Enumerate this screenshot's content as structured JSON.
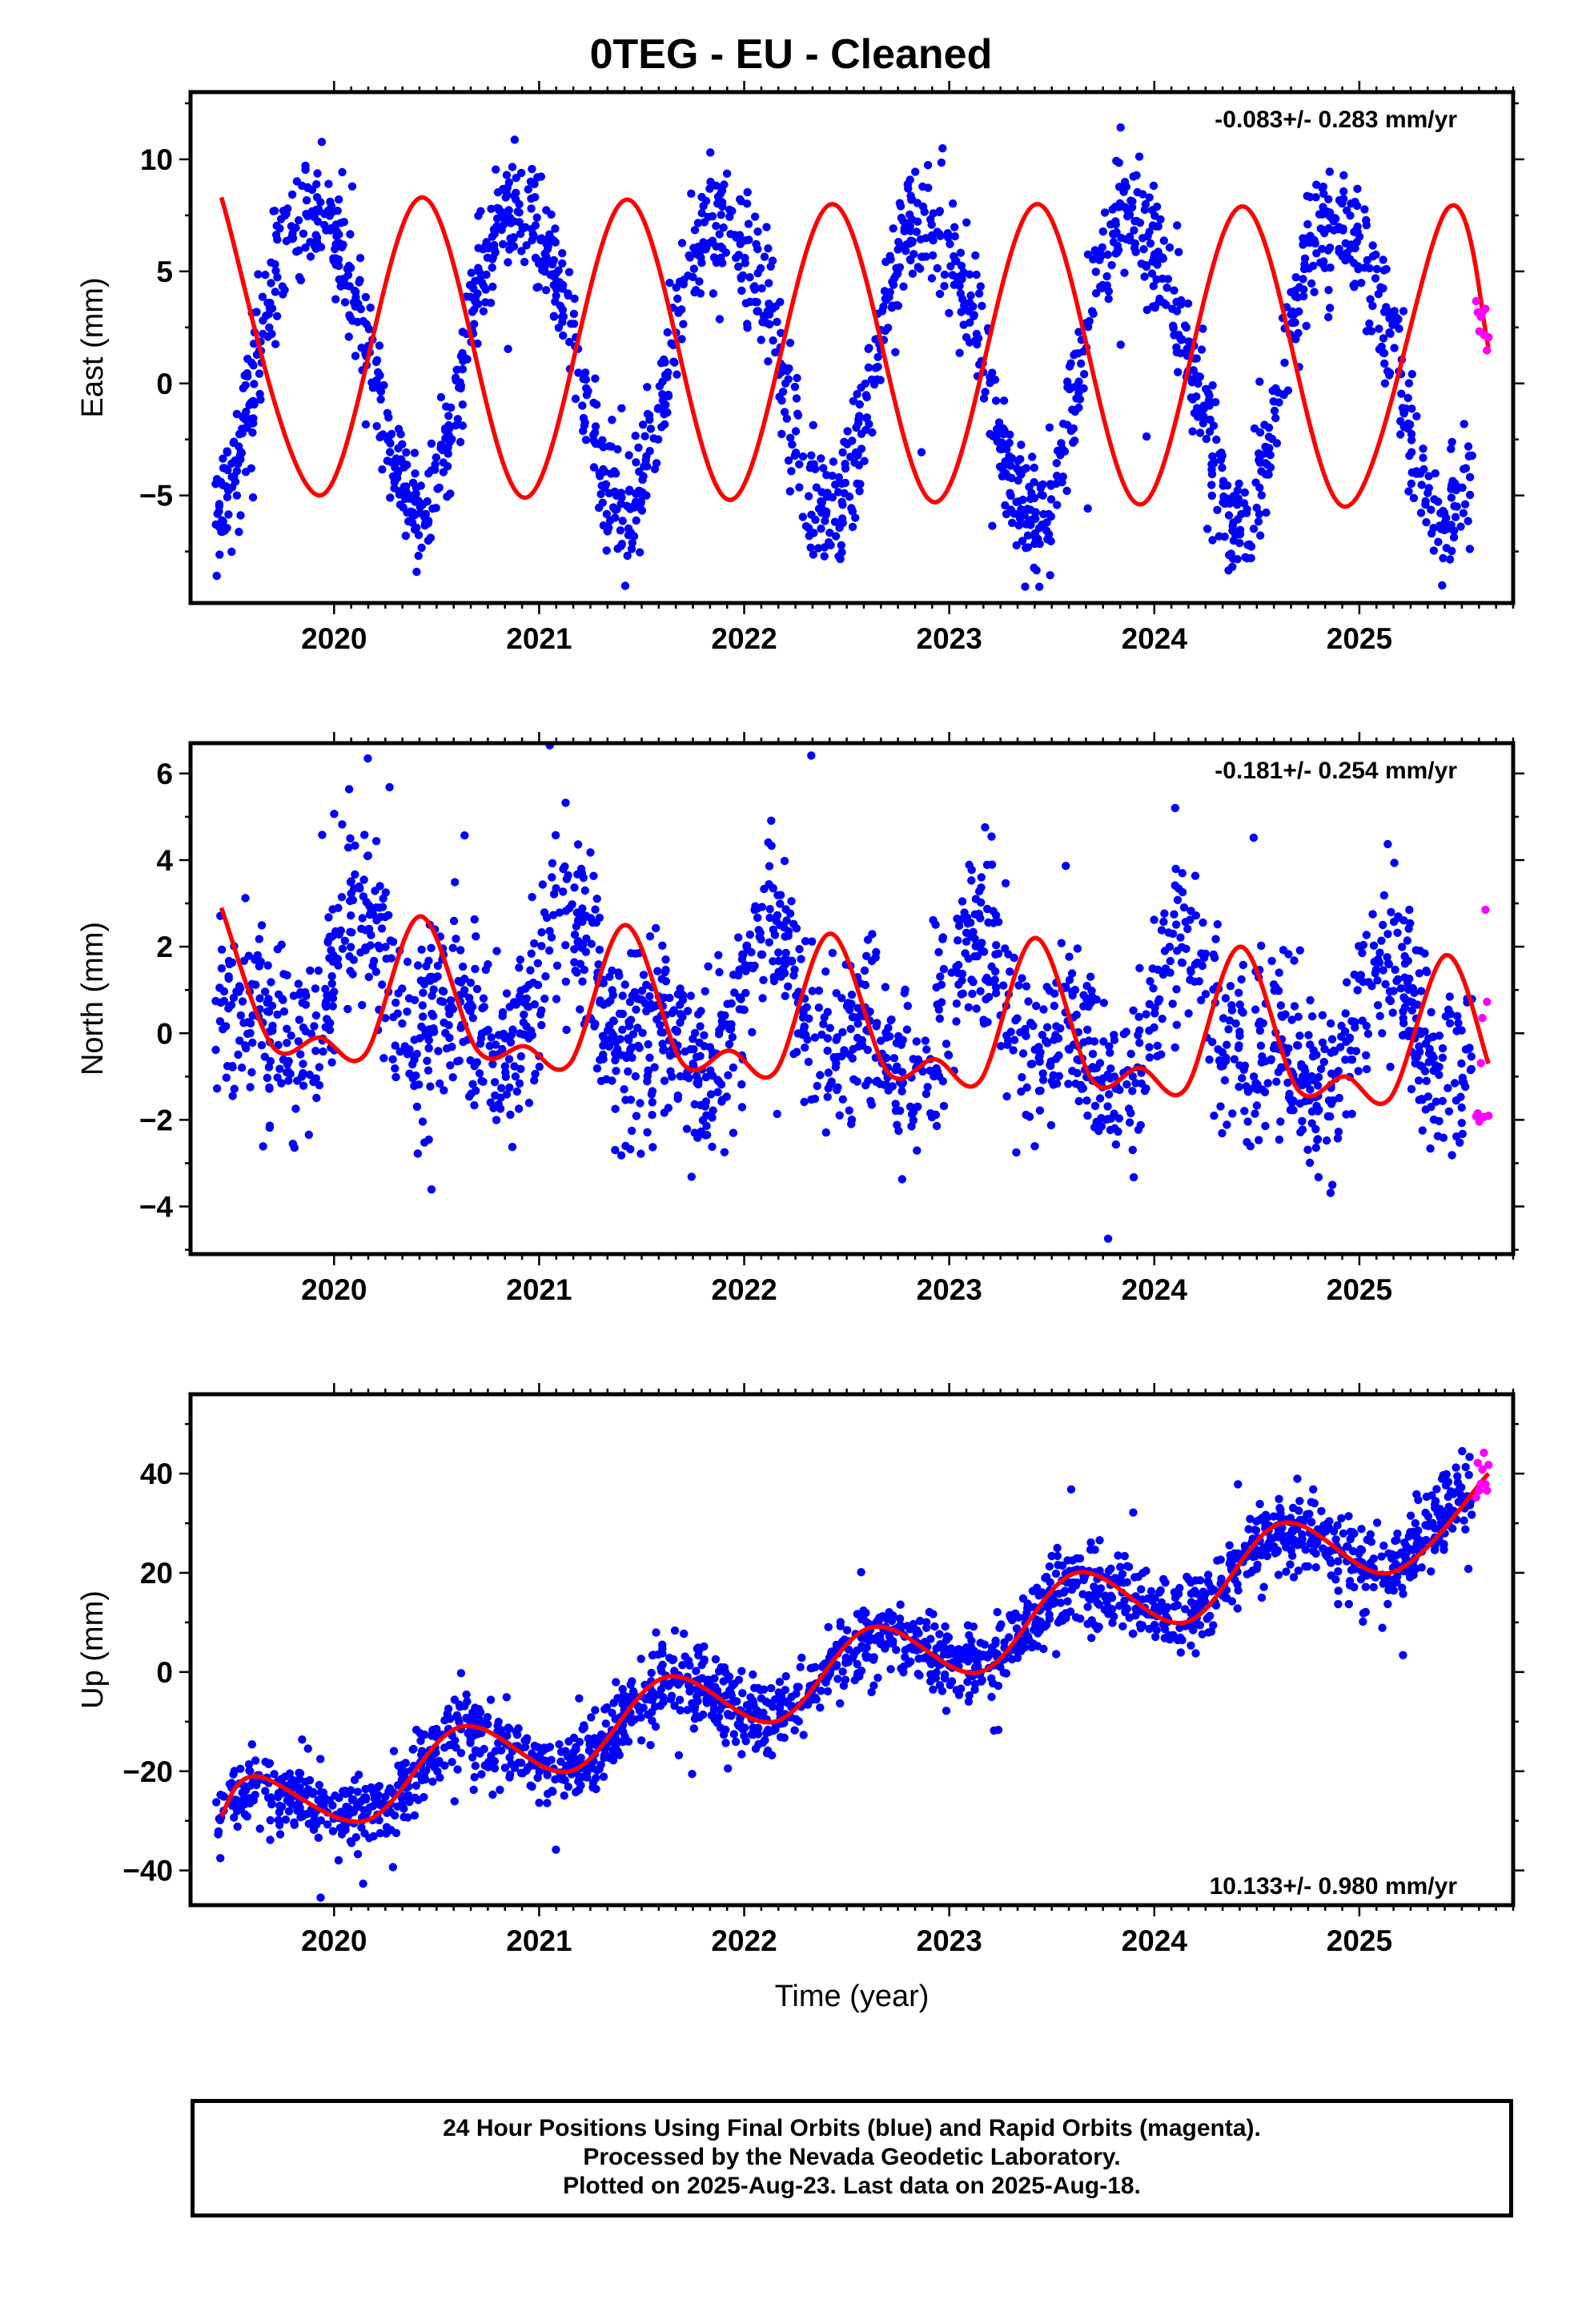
{
  "page_title": "0TEG  - EU - Cleaned",
  "caption": [
    "24 Hour Positions Using Final Orbits (blue) and Rapid Orbits (magenta).",
    "Processed by the Nevada Geodetic Laboratory.",
    "Plotted on 2025-Aug-23. Last data on 2025-Aug-18."
  ],
  "colors": {
    "final_orbits": "#0000ff",
    "rapid_orbits": "#ff00ff",
    "model_fit": "#ff0000",
    "frame": "#000000"
  },
  "chart_data": [
    {
      "type": "scatter",
      "ylabel": "East (mm)",
      "xlabel": "",
      "xlim": [
        2019.3,
        2025.75
      ],
      "ylim": [
        -9.8,
        13
      ],
      "x_ticks": [
        "2020",
        "2021",
        "2022",
        "2023",
        "2024",
        "2025"
      ],
      "y_ticks": [
        -5,
        0,
        5,
        10
      ],
      "rate_label": "-0.083+/- 0.283 mm/yr",
      "rate_position": "top-right",
      "grid": false,
      "series": [
        {
          "name": "final_orbits",
          "color": "#0000ff",
          "start": 2019.42,
          "end": 2025.55,
          "n": 1900,
          "model": {
            "trend_mm_per_yr": -0.083,
            "offset_mm": 1.3,
            "annual_cos": 5.5,
            "annual_sin": -3.8,
            "semiannual_cos": -0.6,
            "semiannual_sin": 0.5
          },
          "scatter_mm": 1.35
        },
        {
          "name": "rapid_orbits",
          "color": "#ff00ff",
          "start": 2025.57,
          "end": 2025.63,
          "n": 9,
          "scatter_mm": 1.2
        },
        {
          "name": "model_fit",
          "color": "#ff0000",
          "start": 2019.45,
          "end": 2025.63,
          "key_points": [
            [
              2019.45,
              8.3
            ],
            [
              2019.93,
              -5.0
            ],
            [
              2020.43,
              8.3
            ],
            [
              2020.93,
              -5.1
            ],
            [
              2021.43,
              8.2
            ],
            [
              2021.93,
              -5.2
            ],
            [
              2022.43,
              8.0
            ],
            [
              2022.93,
              -5.3
            ],
            [
              2023.43,
              8.0
            ],
            [
              2023.93,
              -5.4
            ],
            [
              2024.43,
              7.9
            ],
            [
              2024.93,
              -5.5
            ],
            [
              2025.43,
              7.8
            ],
            [
              2025.63,
              1.6
            ]
          ]
        }
      ]
    },
    {
      "type": "scatter",
      "ylabel": "North (mm)",
      "xlabel": "",
      "xlim": [
        2019.3,
        2025.75
      ],
      "ylim": [
        -5.1,
        6.7
      ],
      "x_ticks": [
        "2020",
        "2021",
        "2022",
        "2023",
        "2024",
        "2025"
      ],
      "y_ticks": [
        -4,
        -2,
        0,
        2,
        4,
        6
      ],
      "rate_label": "-0.181+/- 0.254 mm/yr",
      "rate_position": "top-right",
      "grid": false,
      "series": [
        {
          "name": "final_orbits",
          "color": "#0000ff",
          "start": 2019.42,
          "end": 2025.55,
          "n": 1900,
          "model": {
            "trend_mm_per_yr": -0.181,
            "offset_mm": 0.35,
            "annual_cos": 0.6,
            "annual_sin": 1.1,
            "semiannual_cos": 0.1,
            "semiannual_sin": 0.95
          },
          "scatter_mm": 1.05
        },
        {
          "name": "rapid_orbits",
          "color": "#ff00ff",
          "start": 2025.57,
          "end": 2025.63,
          "n": 9,
          "scatter_mm": 1.6
        },
        {
          "name": "model_fit",
          "color": "#ff0000",
          "start": 2019.45,
          "end": 2025.63,
          "key_points": [
            [
              2019.45,
              2.9
            ],
            [
              2019.7,
              -0.3
            ],
            [
              2019.93,
              -0.1
            ],
            [
              2020.15,
              -0.5
            ],
            [
              2020.42,
              2.7
            ],
            [
              2020.7,
              -0.4
            ],
            [
              2020.93,
              -0.3
            ],
            [
              2021.15,
              -0.7
            ],
            [
              2021.42,
              2.5
            ],
            [
              2021.7,
              -0.7
            ],
            [
              2021.93,
              -0.4
            ],
            [
              2022.15,
              -0.9
            ],
            [
              2022.42,
              2.3
            ],
            [
              2022.7,
              -0.9
            ],
            [
              2022.93,
              -0.6
            ],
            [
              2023.15,
              -1.1
            ],
            [
              2023.42,
              2.2
            ],
            [
              2023.7,
              -1.1
            ],
            [
              2023.93,
              -0.8
            ],
            [
              2024.15,
              -1.3
            ],
            [
              2024.42,
              2.0
            ],
            [
              2024.7,
              -1.3
            ],
            [
              2024.93,
              -1.0
            ],
            [
              2025.15,
              -1.5
            ],
            [
              2025.42,
              1.8
            ],
            [
              2025.63,
              -0.7
            ]
          ]
        }
      ]
    },
    {
      "type": "scatter",
      "ylabel": "Up (mm)",
      "xlabel": "Time (year)",
      "xlim": [
        2019.3,
        2025.75
      ],
      "ylim": [
        -47,
        56
      ],
      "x_ticks": [
        "2020",
        "2021",
        "2022",
        "2023",
        "2024",
        "2025"
      ],
      "y_ticks": [
        -40,
        -20,
        0,
        20,
        40
      ],
      "rate_label": "10.133+/- 0.980 mm/yr",
      "rate_position": "bottom-right",
      "grid": false,
      "series": [
        {
          "name": "final_orbits",
          "color": "#0000ff",
          "start": 2019.42,
          "end": 2025.55,
          "n": 1900,
          "model": {
            "trend_mm_per_yr": 10.133,
            "offset_mm": 0.5,
            "annual_cos": -3.8,
            "annual_sin": -4.4,
            "semiannual_cos": 0.4,
            "semiannual_sin": -0.3
          },
          "scatter_mm": 3.9
        },
        {
          "name": "rapid_orbits",
          "color": "#ff00ff",
          "start": 2025.57,
          "end": 2025.63,
          "n": 9,
          "scatter_mm": 4.0
        },
        {
          "name": "model_fit",
          "color": "#ff0000",
          "start": 2019.45,
          "end": 2025.63,
          "key_points": [
            [
              2019.45,
              -29
            ],
            [
              2019.62,
              -21
            ],
            [
              2020.15,
              -30
            ],
            [
              2020.62,
              -11
            ],
            [
              2021.15,
              -20
            ],
            [
              2021.62,
              -1
            ],
            [
              2022.15,
              -10
            ],
            [
              2022.62,
              9
            ],
            [
              2023.15,
              0
            ],
            [
              2023.62,
              20
            ],
            [
              2024.15,
              10
            ],
            [
              2024.62,
              30
            ],
            [
              2025.15,
              20
            ],
            [
              2025.63,
              40
            ]
          ]
        }
      ]
    }
  ]
}
